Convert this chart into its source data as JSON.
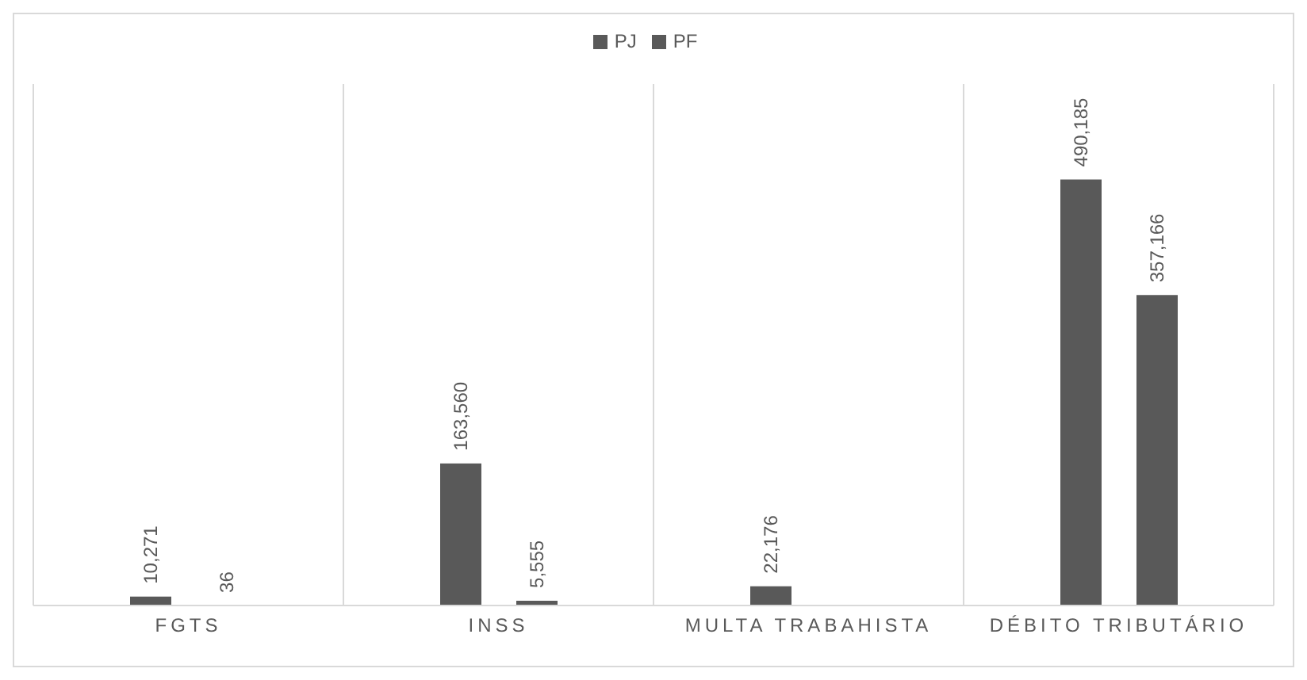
{
  "chart_data": {
    "type": "bar",
    "categories": [
      "FGTS",
      "INSS",
      "MULTA TRABAHISTA",
      "DÉBITO TRIBUTÁRIO"
    ],
    "series": [
      {
        "name": "PJ",
        "color": "#595959",
        "values": [
          10271,
          163560,
          22176,
          490185
        ],
        "value_labels": [
          "10,271",
          "163,560",
          "22,176",
          "490,185"
        ]
      },
      {
        "name": "PF",
        "color": "#595959",
        "values": [
          36,
          5555,
          null,
          357166
        ],
        "value_labels": [
          "36",
          "5,555",
          null,
          "357,166"
        ]
      }
    ],
    "legend": "top",
    "grid": "x"
  }
}
